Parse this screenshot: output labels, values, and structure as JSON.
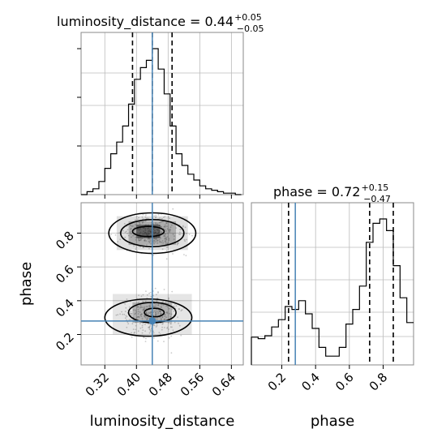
{
  "chart_data": [
    {
      "type": "histogram",
      "panel": "luminosity_distance marginal",
      "title": {
        "prefix": "luminosity_distance = 0.44",
        "upper": "+0.05",
        "lower": "−0.05"
      },
      "xlim": [
        0.26,
        0.67
      ],
      "bin_edges": [
        0.26,
        0.275,
        0.29,
        0.305,
        0.32,
        0.335,
        0.35,
        0.365,
        0.38,
        0.395,
        0.41,
        0.425,
        0.44,
        0.455,
        0.47,
        0.485,
        0.5,
        0.515,
        0.53,
        0.545,
        0.56,
        0.575,
        0.59,
        0.605,
        0.62,
        0.635,
        0.65,
        0.665
      ],
      "counts": [
        0.0,
        0.02,
        0.04,
        0.09,
        0.18,
        0.28,
        0.36,
        0.47,
        0.62,
        0.79,
        0.87,
        0.92,
        1.0,
        0.86,
        0.69,
        0.47,
        0.28,
        0.2,
        0.14,
        0.1,
        0.06,
        0.04,
        0.03,
        0.02,
        0.01,
        0.01,
        0.0
      ],
      "quantiles": [
        0.39,
        0.44,
        0.49
      ],
      "truth": 0.44
    },
    {
      "type": "scatter",
      "panel": "2D density: phase vs luminosity_distance",
      "xlabel": "luminosity_distance",
      "ylabel": "phase",
      "xlim": [
        0.26,
        0.67
      ],
      "ylim": [
        0.02,
        0.98
      ],
      "xticks": [
        "0.32",
        "0.40",
        "0.48",
        "0.56",
        "0.64"
      ],
      "yticks": [
        "0.2",
        "0.4",
        "0.6",
        "0.8"
      ],
      "modes": [
        {
          "x": 0.44,
          "y": 0.8,
          "weight": 0.55
        },
        {
          "x": 0.44,
          "y": 0.32,
          "weight": 0.45
        }
      ],
      "contour_levels": [
        "inner",
        "middle",
        "outer"
      ],
      "truth": {
        "x": 0.44,
        "y": 0.28
      }
    },
    {
      "type": "histogram",
      "panel": "phase marginal",
      "title": {
        "prefix": "phase = 0.72",
        "upper": "+0.15",
        "lower": "−0.47"
      },
      "xlabel": "phase",
      "xlim": [
        0.02,
        0.98
      ],
      "xticks": [
        "0.2",
        "0.4",
        "0.6",
        "0.8"
      ],
      "bin_edges": [
        0.02,
        0.06,
        0.1,
        0.14,
        0.18,
        0.22,
        0.26,
        0.3,
        0.34,
        0.38,
        0.42,
        0.46,
        0.5,
        0.54,
        0.58,
        0.62,
        0.66,
        0.7,
        0.74,
        0.78,
        0.82,
        0.86,
        0.9,
        0.94,
        0.98
      ],
      "counts": [
        0.19,
        0.18,
        0.2,
        0.26,
        0.31,
        0.4,
        0.38,
        0.44,
        0.35,
        0.25,
        0.12,
        0.06,
        0.06,
        0.12,
        0.28,
        0.38,
        0.54,
        0.84,
        0.97,
        1.0,
        0.92,
        0.68,
        0.46,
        0.29
      ],
      "quantiles": [
        0.24,
        0.72,
        0.86
      ],
      "truth": 0.28
    }
  ],
  "colors": {
    "line": "#000000",
    "truth": "#4682b4",
    "grid": "#bbbbbb"
  }
}
